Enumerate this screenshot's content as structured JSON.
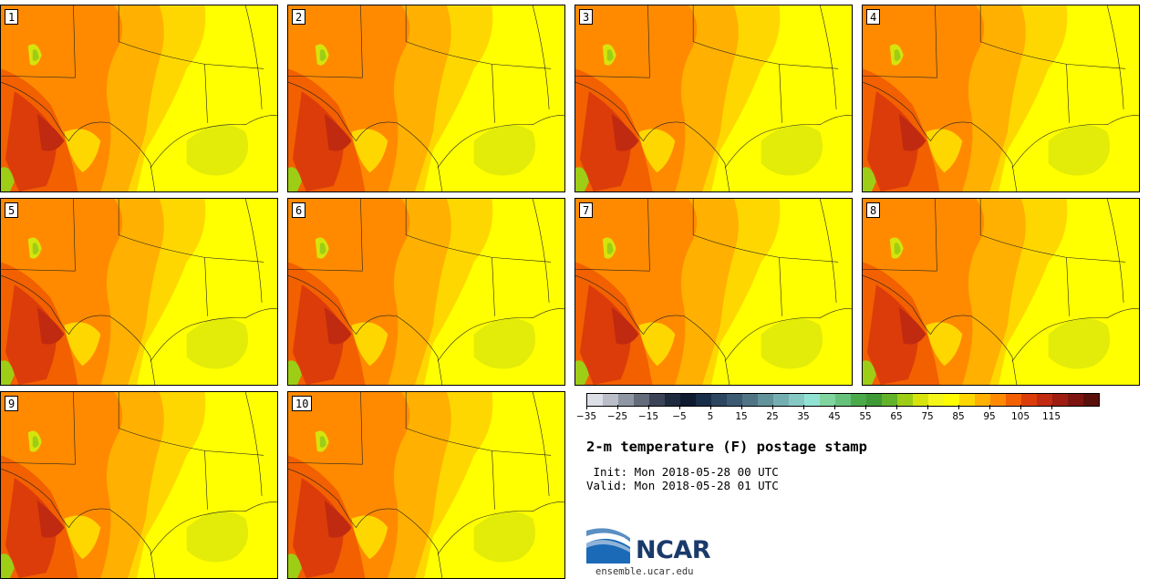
{
  "figure": {
    "title": "2-m temperature (F) postage stamp",
    "init": " Init: Mon 2018-05-28 00 UTC",
    "valid": "Valid: Mon 2018-05-28 01 UTC",
    "footer_url": "ensemble.ucar.edu",
    "logo_text": "NCAR"
  },
  "members": [
    "1",
    "2",
    "3",
    "4",
    "5",
    "6",
    "7",
    "8",
    "9",
    "10"
  ],
  "colorbar": {
    "colors": [
      "#dcdfe6",
      "#b9bec8",
      "#8f96a3",
      "#646c7b",
      "#3a4456",
      "#1e2a3e",
      "#0e1a30",
      "#1a2d48",
      "#2c4560",
      "#3c5a72",
      "#4f7585",
      "#62929a",
      "#75aeb0",
      "#86c9c4",
      "#92e2d3",
      "#80d49e",
      "#66c27a",
      "#4aaa4a",
      "#3e9a36",
      "#62b22a",
      "#9ecd16",
      "#d6e40c",
      "#f5f51a",
      "#fffc00",
      "#ffd700",
      "#ffb000",
      "#ff8a00",
      "#f26000",
      "#dc3c0a",
      "#bf2a10",
      "#9e1d10",
      "#7d1410",
      "#5a100a"
    ],
    "tick_labels": [
      "−35",
      "−25",
      "−15",
      "−5",
      "5",
      "15",
      "25",
      "35",
      "45",
      "55",
      "65",
      "75",
      "85",
      "95",
      "105",
      "115"
    ]
  },
  "colors": {
    "base": "#ffff00",
    "light_yellow": "#f5f51a",
    "gold": "#ffd700",
    "light_orange": "#ffb000",
    "orange": "#ff8a00",
    "dark_orange": "#f26000",
    "red": "#dc3c0a",
    "dark_red": "#bf2a10",
    "green": "#9ecd16",
    "yellow_green": "#d6e40c",
    "logo_blue": "#1a3a6b"
  }
}
